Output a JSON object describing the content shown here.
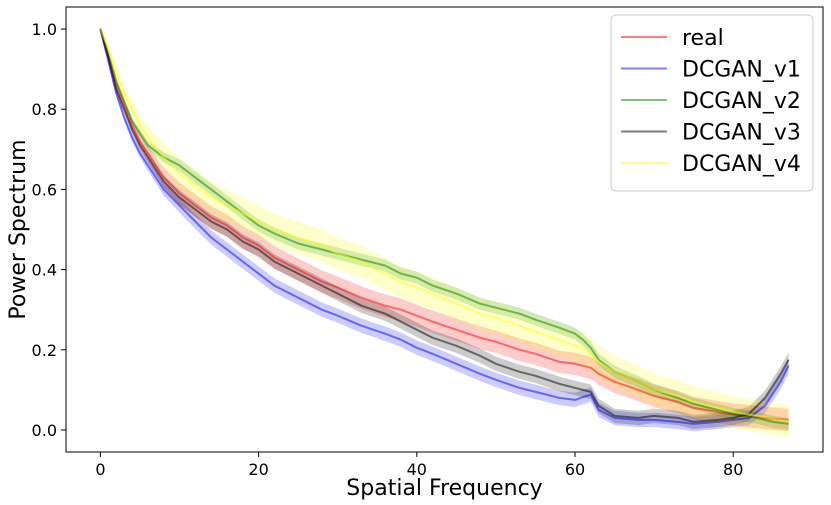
{
  "chart_data": {
    "type": "line",
    "title": "",
    "xlabel": "Spatial Frequency",
    "ylabel": "Power Spectrum",
    "xlim": [
      -4.35,
      91.35
    ],
    "ylim": [
      -0.055,
      1.055
    ],
    "xticks": [
      0,
      20,
      40,
      60,
      80
    ],
    "xtick_labels": [
      "0",
      "20",
      "40",
      "60",
      "80"
    ],
    "yticks": [
      0.0,
      0.2,
      0.4,
      0.6,
      0.8,
      1.0
    ],
    "ytick_labels": [
      "0.0",
      "0.2",
      "0.4",
      "0.6",
      "0.8",
      "1.0"
    ],
    "grid": false,
    "legend_position": "top-right",
    "shaded_band": "mean ± spread",
    "series": [
      {
        "name": "real",
        "color": "#ff0000",
        "x": [
          0,
          1,
          2,
          3,
          4,
          5,
          6,
          8,
          10,
          12,
          14,
          16,
          18,
          20,
          22,
          25,
          28,
          30,
          33,
          36,
          38,
          40,
          42,
          45,
          48,
          50,
          53,
          55,
          58,
          60,
          61,
          62,
          63,
          65,
          68,
          70,
          73,
          75,
          78,
          80,
          83,
          85,
          87
        ],
        "y": [
          1.0,
          0.93,
          0.86,
          0.81,
          0.76,
          0.72,
          0.69,
          0.63,
          0.59,
          0.56,
          0.53,
          0.51,
          0.48,
          0.46,
          0.43,
          0.4,
          0.37,
          0.355,
          0.33,
          0.31,
          0.3,
          0.285,
          0.27,
          0.25,
          0.23,
          0.22,
          0.2,
          0.19,
          0.17,
          0.165,
          0.16,
          0.155,
          0.14,
          0.12,
          0.1,
          0.085,
          0.07,
          0.055,
          0.045,
          0.038,
          0.032,
          0.028,
          0.025
        ],
        "band": 0.028
      },
      {
        "name": "DCGAN_v1",
        "color": "#0000ff",
        "x": [
          0,
          1,
          2,
          3,
          4,
          5,
          6,
          8,
          10,
          12,
          14,
          16,
          18,
          20,
          22,
          25,
          28,
          30,
          33,
          36,
          38,
          40,
          42,
          45,
          48,
          50,
          53,
          55,
          58,
          60,
          61,
          62,
          63,
          65,
          68,
          70,
          73,
          75,
          78,
          80,
          82,
          84,
          85,
          86,
          87
        ],
        "y": [
          1.0,
          0.92,
          0.84,
          0.78,
          0.73,
          0.69,
          0.66,
          0.6,
          0.56,
          0.52,
          0.48,
          0.45,
          0.42,
          0.39,
          0.36,
          0.33,
          0.3,
          0.285,
          0.26,
          0.24,
          0.225,
          0.205,
          0.19,
          0.165,
          0.14,
          0.125,
          0.105,
          0.095,
          0.08,
          0.075,
          0.082,
          0.088,
          0.05,
          0.03,
          0.025,
          0.025,
          0.02,
          0.015,
          0.02,
          0.025,
          0.03,
          0.06,
          0.09,
          0.12,
          0.16
        ],
        "band": 0.018
      },
      {
        "name": "DCGAN_v2",
        "color": "#008000",
        "x": [
          0,
          1,
          2,
          3,
          4,
          5,
          6,
          8,
          10,
          12,
          14,
          16,
          18,
          20,
          22,
          25,
          28,
          30,
          33,
          36,
          38,
          40,
          42,
          45,
          48,
          50,
          53,
          55,
          58,
          60,
          61,
          62,
          63,
          65,
          68,
          70,
          73,
          75,
          78,
          80,
          83,
          85,
          87
        ],
        "y": [
          1.0,
          0.94,
          0.87,
          0.82,
          0.77,
          0.74,
          0.71,
          0.68,
          0.66,
          0.63,
          0.6,
          0.57,
          0.54,
          0.51,
          0.49,
          0.465,
          0.45,
          0.44,
          0.425,
          0.41,
          0.39,
          0.38,
          0.36,
          0.34,
          0.315,
          0.305,
          0.29,
          0.275,
          0.255,
          0.24,
          0.225,
          0.205,
          0.175,
          0.145,
          0.12,
          0.1,
          0.08,
          0.065,
          0.05,
          0.04,
          0.03,
          0.02,
          0.015
        ],
        "band": 0.015
      },
      {
        "name": "DCGAN_v3",
        "color": "#000000",
        "x": [
          0,
          1,
          2,
          3,
          4,
          5,
          6,
          8,
          10,
          12,
          14,
          16,
          18,
          20,
          22,
          25,
          28,
          30,
          33,
          36,
          38,
          40,
          42,
          45,
          48,
          50,
          53,
          55,
          58,
          60,
          61,
          62,
          63,
          65,
          68,
          70,
          73,
          75,
          78,
          80,
          82,
          84,
          85,
          86,
          87
        ],
        "y": [
          1.0,
          0.93,
          0.85,
          0.8,
          0.75,
          0.71,
          0.68,
          0.62,
          0.58,
          0.55,
          0.52,
          0.5,
          0.47,
          0.45,
          0.42,
          0.39,
          0.36,
          0.34,
          0.31,
          0.29,
          0.27,
          0.25,
          0.23,
          0.21,
          0.185,
          0.165,
          0.145,
          0.135,
          0.115,
          0.105,
          0.1,
          0.095,
          0.06,
          0.035,
          0.03,
          0.035,
          0.03,
          0.02,
          0.025,
          0.03,
          0.04,
          0.08,
          0.11,
          0.14,
          0.175
        ],
        "band": 0.018
      },
      {
        "name": "DCGAN_v4",
        "color": "#ffff00",
        "x": [
          0,
          1,
          2,
          3,
          4,
          5,
          6,
          8,
          10,
          12,
          14,
          16,
          18,
          20,
          22,
          25,
          28,
          30,
          33,
          36,
          38,
          40,
          42,
          45,
          48,
          50,
          53,
          55,
          58,
          60,
          61,
          62,
          63,
          65,
          68,
          70,
          73,
          75,
          78,
          80,
          83,
          85,
          87
        ],
        "y": [
          1.0,
          0.95,
          0.89,
          0.84,
          0.8,
          0.76,
          0.73,
          0.68,
          0.64,
          0.61,
          0.58,
          0.56,
          0.54,
          0.52,
          0.5,
          0.48,
          0.46,
          0.44,
          0.42,
          0.39,
          0.37,
          0.355,
          0.34,
          0.315,
          0.29,
          0.28,
          0.26,
          0.245,
          0.225,
          0.21,
          0.205,
          0.19,
          0.17,
          0.145,
          0.12,
          0.1,
          0.085,
          0.07,
          0.055,
          0.045,
          0.035,
          0.028,
          0.022
        ],
        "band": 0.04
      }
    ]
  }
}
